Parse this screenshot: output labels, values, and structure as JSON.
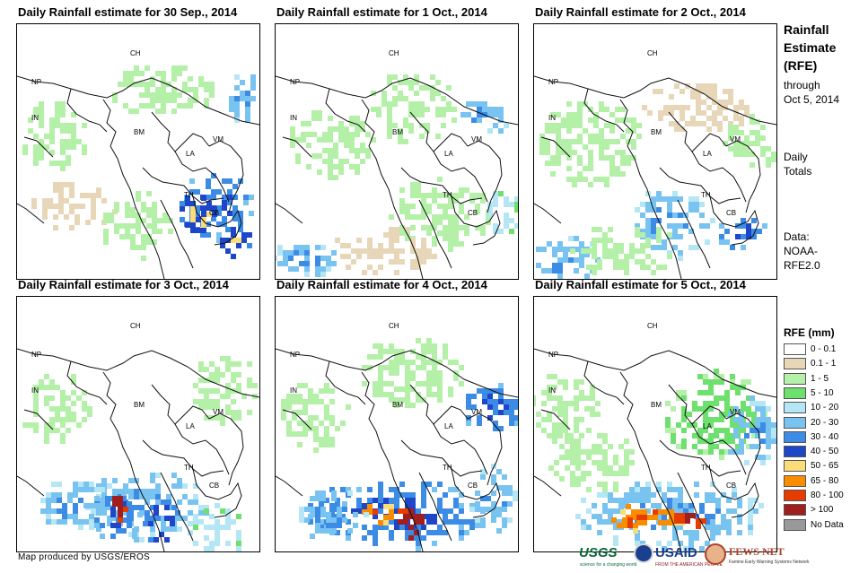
{
  "panels": [
    {
      "title": "Daily Rainfall estimate for 30 Sep., 2014"
    },
    {
      "title": "Daily Rainfall estimate for 1 Oct., 2014"
    },
    {
      "title": "Daily Rainfall estimate for 2 Oct., 2014"
    },
    {
      "title": "Daily Rainfall estimate for 3 Oct., 2014"
    },
    {
      "title": "Daily Rainfall estimate for 4 Oct., 2014"
    },
    {
      "title": "Daily Rainfall estimate for 5 Oct., 2014"
    }
  ],
  "country_labels": [
    "CH",
    "NP",
    "IN",
    "BM",
    "LA",
    "VM",
    "TH",
    "CB"
  ],
  "sidebar": {
    "title_line1": "Rainfall",
    "title_line2": "Estimate",
    "title_line3": "(RFE)",
    "through": "through",
    "date": "Oct 5, 2014",
    "daily": "Daily",
    "totals": "Totals",
    "data_label": "Data:",
    "data_source1": "NOAA-",
    "data_source2": "RFE2.0"
  },
  "legend": {
    "title": "RFE (mm)",
    "items": [
      {
        "label": "0 - 0.1",
        "color": "#ffffff"
      },
      {
        "label": "0.1 - 1",
        "color": "#e8d6b8"
      },
      {
        "label": "1 - 5",
        "color": "#b4f0a8"
      },
      {
        "label": "5 - 10",
        "color": "#6de06d"
      },
      {
        "label": "10 - 20",
        "color": "#b4e6f5"
      },
      {
        "label": "20 - 30",
        "color": "#78c3f0"
      },
      {
        "label": "30 - 40",
        "color": "#3c8ce6"
      },
      {
        "label": "40 - 50",
        "color": "#1e46c8"
      },
      {
        "label": "50 - 65",
        "color": "#fadc78"
      },
      {
        "label": "65 - 80",
        "color": "#fa8c00"
      },
      {
        "label": "80 - 100",
        "color": "#e63c00"
      },
      {
        "label": "> 100",
        "color": "#a01e1e"
      },
      {
        "label": "No Data",
        "color": "#999999"
      }
    ]
  },
  "credit": "Map produced by USGS/EROS",
  "logos": {
    "usgs": "USGS",
    "usgs_tagline": "science for a changing world",
    "usaid": "USAID",
    "usaid_tagline": "FROM THE AMERICAN PEOPLE",
    "fews": "FEWS NET",
    "fews_tagline": "Famine Early Warning Systems Network"
  }
}
